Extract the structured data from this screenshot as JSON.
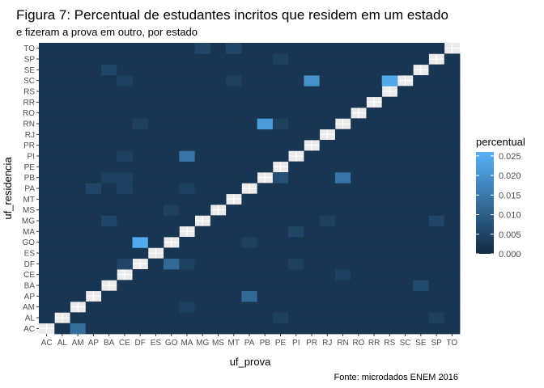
{
  "chart_data": {
    "type": "heatmap",
    "title": "Figura 7: Percentual de estudantes incritos que residem em um estado",
    "subtitle": "e fizeram a prova em   outro, por estado",
    "xlabel": "uf_prova",
    "ylabel": "uf_residencia",
    "caption": "Fonte: microdados ENEM 2016",
    "states": [
      "AC",
      "AL",
      "AM",
      "AP",
      "BA",
      "CE",
      "DF",
      "ES",
      "GO",
      "MA",
      "MG",
      "MS",
      "MT",
      "PA",
      "PB",
      "PE",
      "PI",
      "PR",
      "RJ",
      "RN",
      "RO",
      "RR",
      "RS",
      "SC",
      "SE",
      "SP",
      "TO"
    ],
    "fill_range": [
      0,
      0.026
    ],
    "legend": {
      "title": "percentual",
      "breaks": [
        0.025,
        0.02,
        0.015,
        0.01,
        0.005,
        0.0
      ],
      "break_labels": [
        "0.025",
        "0.020",
        "0.015",
        "0.010",
        "0.005",
        "0.000"
      ]
    },
    "diagonal": "missing",
    "background_level": 0.002,
    "cells": [
      {
        "residencia": "AC",
        "prova": "AM",
        "value": 0.013
      },
      {
        "residencia": "AP",
        "prova": "PA",
        "value": 0.012
      },
      {
        "residencia": "BA",
        "prova": "SE",
        "value": 0.006
      },
      {
        "residencia": "CE",
        "prova": "RN",
        "value": 0.004
      },
      {
        "residencia": "DF",
        "prova": "GO",
        "value": 0.012
      },
      {
        "residencia": "DF",
        "prova": "CE",
        "value": 0.005
      },
      {
        "residencia": "DF",
        "prova": "MA",
        "value": 0.004
      },
      {
        "residencia": "DF",
        "prova": "PI",
        "value": 0.004
      },
      {
        "residencia": "GO",
        "prova": "DF",
        "value": 0.025
      },
      {
        "residencia": "GO",
        "prova": "PA",
        "value": 0.004
      },
      {
        "residencia": "MA",
        "prova": "PI",
        "value": 0.005
      },
      {
        "residencia": "MG",
        "prova": "BA",
        "value": 0.005
      },
      {
        "residencia": "MG",
        "prova": "RJ",
        "value": 0.004
      },
      {
        "residencia": "MG",
        "prova": "SP",
        "value": 0.005
      },
      {
        "residencia": "MS",
        "prova": "GO",
        "value": 0.004
      },
      {
        "residencia": "PA",
        "prova": "AP",
        "value": 0.005
      },
      {
        "residencia": "PA",
        "prova": "MA",
        "value": 0.004
      },
      {
        "residencia": "PA",
        "prova": "CE",
        "value": 0.004
      },
      {
        "residencia": "PB",
        "prova": "RN",
        "value": 0.014
      },
      {
        "residencia": "PB",
        "prova": "PE",
        "value": 0.007
      },
      {
        "residencia": "PB",
        "prova": "BA",
        "value": 0.004
      },
      {
        "residencia": "PB",
        "prova": "CE",
        "value": 0.004
      },
      {
        "residencia": "PI",
        "prova": "MA",
        "value": 0.014
      },
      {
        "residencia": "PI",
        "prova": "CE",
        "value": 0.004
      },
      {
        "residencia": "RN",
        "prova": "PB",
        "value": 0.022
      },
      {
        "residencia": "RN",
        "prova": "PE",
        "value": 0.004
      },
      {
        "residencia": "RN",
        "prova": "DF",
        "value": 0.004
      },
      {
        "residencia": "SC",
        "prova": "RS",
        "value": 0.024
      },
      {
        "residencia": "SC",
        "prova": "PR",
        "value": 0.02
      },
      {
        "residencia": "SC",
        "prova": "CE",
        "value": 0.004
      },
      {
        "residencia": "SC",
        "prova": "MT",
        "value": 0.004
      },
      {
        "residencia": "SE",
        "prova": "BA",
        "value": 0.005
      },
      {
        "residencia": "SP",
        "prova": "PE",
        "value": 0.004
      },
      {
        "residencia": "TO",
        "prova": "MG",
        "value": 0.005
      },
      {
        "residencia": "TO",
        "prova": "MT",
        "value": 0.005
      },
      {
        "residencia": "AM",
        "prova": "MA",
        "value": 0.004
      },
      {
        "residencia": "AL",
        "prova": "PE",
        "value": 0.004
      },
      {
        "residencia": "AL",
        "prova": "SP",
        "value": 0.004
      }
    ]
  }
}
